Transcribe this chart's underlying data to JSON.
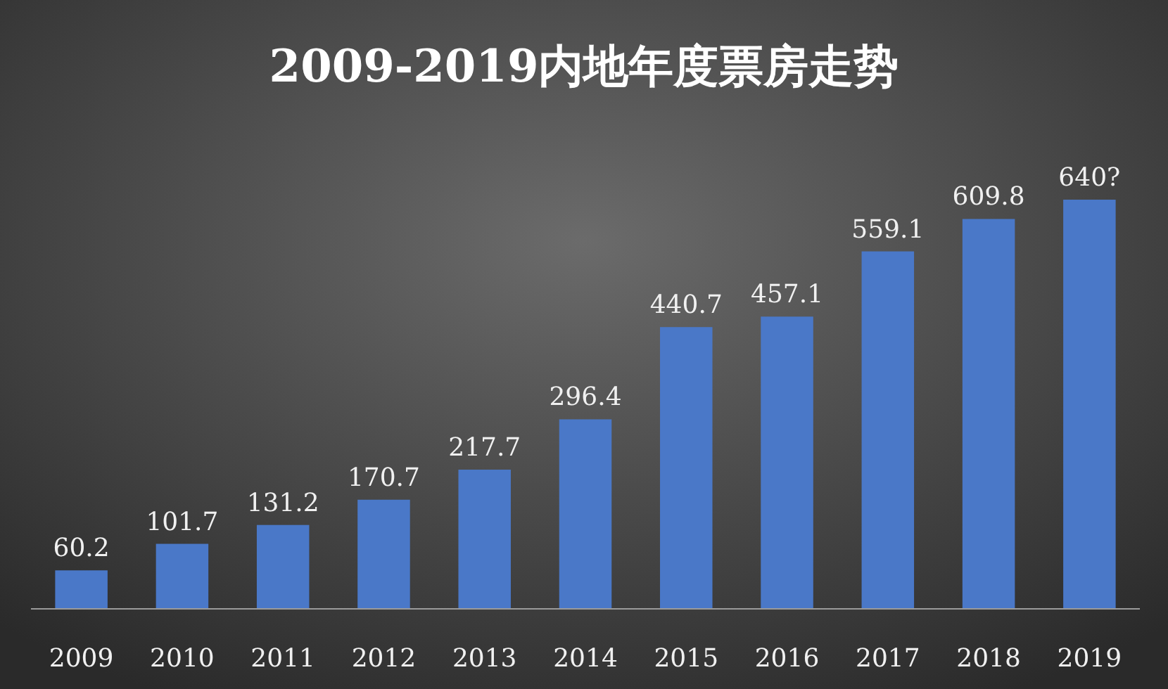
{
  "chart_data": {
    "type": "bar",
    "title": "2009-2019内地年度票房走势",
    "categories": [
      "2009",
      "2010",
      "2011",
      "2012",
      "2013",
      "2014",
      "2015",
      "2016",
      "2017",
      "2018",
      "2019"
    ],
    "values": [
      60.2,
      101.7,
      131.2,
      170.7,
      217.7,
      296.4,
      440.7,
      457.1,
      559.1,
      609.8,
      640
    ],
    "value_labels": [
      "60.2",
      "101.7",
      "131.2",
      "170.7",
      "217.7",
      "296.4",
      "440.7",
      "457.1",
      "559.1",
      "609.8",
      "640?"
    ],
    "color": "#4a78c8",
    "grid": false
  }
}
